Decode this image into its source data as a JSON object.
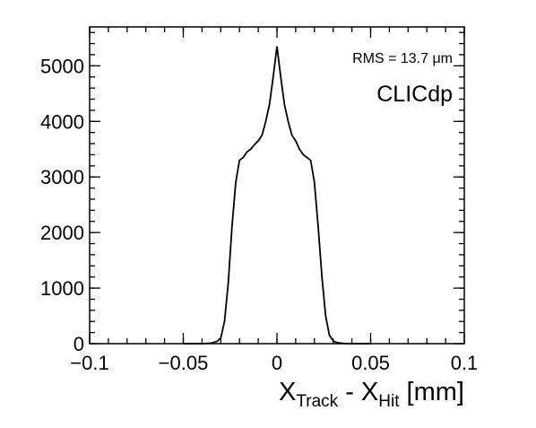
{
  "chart_data": {
    "type": "line",
    "style": "step-histogram",
    "title": "",
    "xlabel": {
      "main": "X",
      "sub1": "Track",
      "sep": " - ",
      "main2": "X",
      "sub2": "Hit",
      "unit": " [mm]"
    },
    "ylabel": "",
    "xlim": [
      -0.1,
      0.1
    ],
    "ylim": [
      0,
      5700
    ],
    "xticks": [
      -0.1,
      -0.05,
      0,
      0.05,
      0.1
    ],
    "xtick_labels": [
      "−0.1",
      "−0.05",
      "0",
      "0.05",
      "0.1"
    ],
    "yticks": [
      0,
      1000,
      2000,
      3000,
      4000,
      5000
    ],
    "ytick_labels": [
      "0",
      "1000",
      "2000",
      "3000",
      "4000",
      "5000"
    ],
    "grid": false,
    "legend": "none",
    "annotations": {
      "rms": "RMS = 13.7 μm",
      "logo": "CLICdp"
    },
    "series": [
      {
        "color": "#000000",
        "x": [
          -0.05,
          -0.04,
          -0.035,
          -0.032,
          -0.03,
          -0.028,
          -0.026,
          -0.024,
          -0.022,
          -0.02,
          -0.018,
          -0.016,
          -0.014,
          -0.012,
          -0.01,
          -0.008,
          -0.006,
          -0.004,
          -0.002,
          0,
          0.002,
          0.004,
          0.006,
          0.008,
          0.01,
          0.012,
          0.014,
          0.016,
          0.018,
          0.02,
          0.022,
          0.024,
          0.026,
          0.028,
          0.03,
          0.032,
          0.035,
          0.04,
          0.05
        ],
        "values": [
          0,
          0,
          10,
          40,
          100,
          400,
          1100,
          2100,
          2900,
          3300,
          3350,
          3450,
          3500,
          3580,
          3650,
          3750,
          4000,
          4300,
          4800,
          5350,
          4800,
          4300,
          4000,
          3750,
          3650,
          3500,
          3400,
          3350,
          3300,
          2900,
          2100,
          1200,
          500,
          150,
          50,
          20,
          5,
          0,
          0
        ]
      }
    ]
  }
}
